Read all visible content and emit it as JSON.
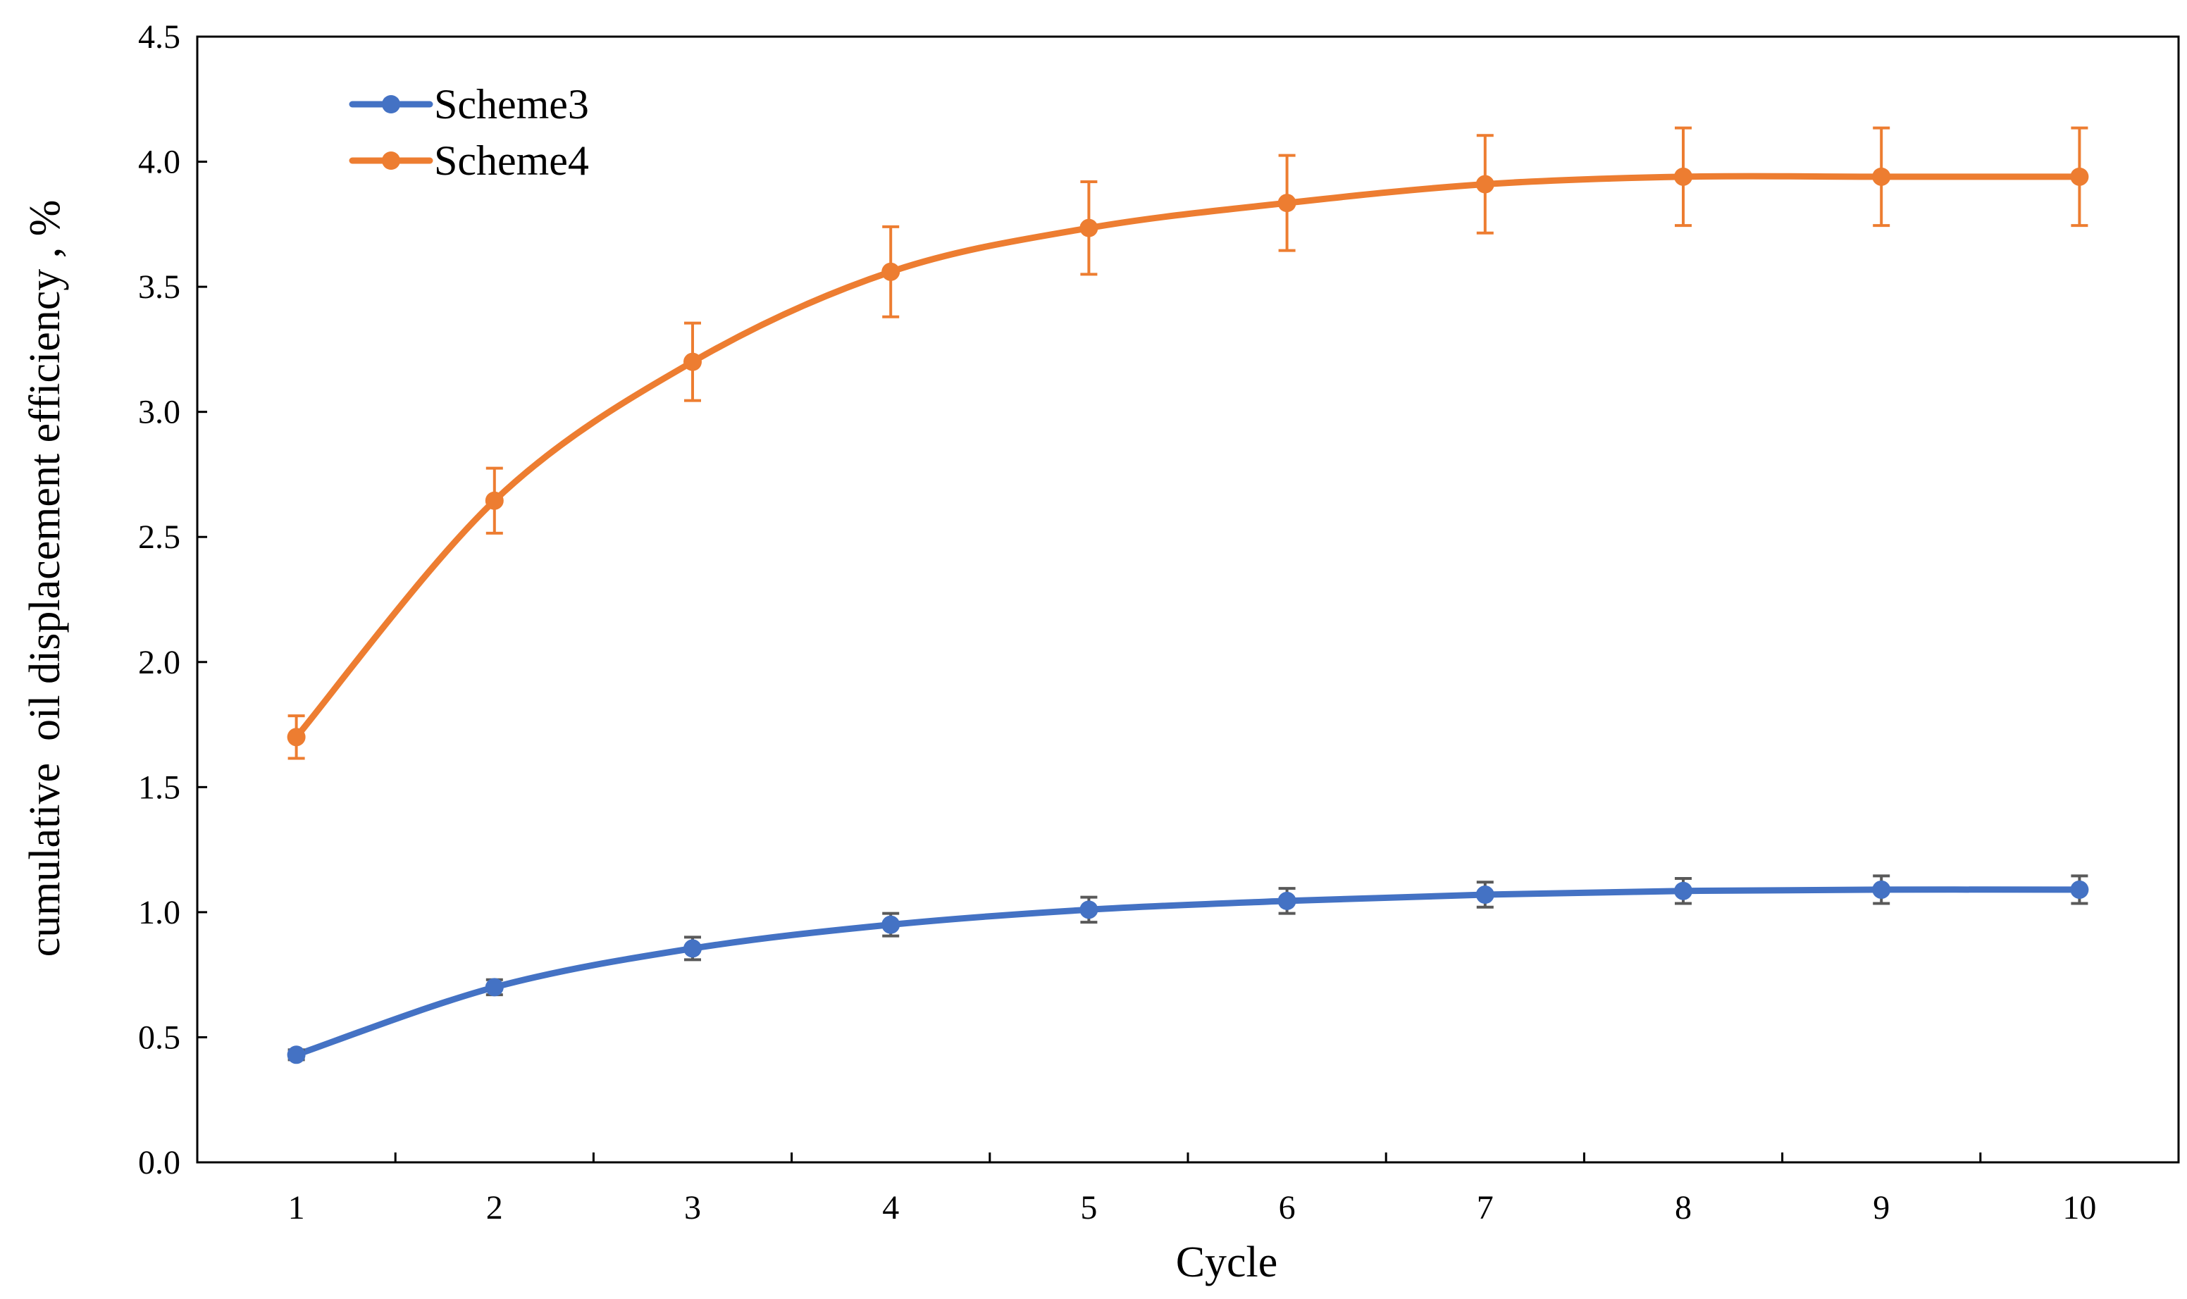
{
  "chart_data": {
    "type": "line",
    "title": "",
    "xlabel": "Cycle",
    "ylabel": "cumulative  oil displacement efficiency , %",
    "categories": [
      "1",
      "2",
      "3",
      "4",
      "5",
      "6",
      "7",
      "8",
      "9",
      "10"
    ],
    "x": [
      1,
      2,
      3,
      4,
      5,
      6,
      7,
      8,
      9,
      10
    ],
    "ylim": [
      0,
      4.5
    ],
    "yticks": [
      "0.0",
      "0.5",
      "1.0",
      "1.5",
      "2.0",
      "2.5",
      "3.0",
      "3.5",
      "4.0",
      "4.5"
    ],
    "grid": false,
    "legend": "top-left",
    "smooth": true,
    "error_bars": true,
    "series": [
      {
        "name": "Scheme3",
        "color": "#4472C4",
        "error_color": "#595959",
        "values": [
          0.43,
          0.7,
          0.855,
          0.95,
          1.01,
          1.045,
          1.07,
          1.085,
          1.09,
          1.09
        ],
        "errors": [
          0.02,
          0.03,
          0.045,
          0.045,
          0.05,
          0.05,
          0.05,
          0.05,
          0.055,
          0.055
        ]
      },
      {
        "name": "Scheme4",
        "color": "#ED7D31",
        "error_color": "#ED7D31",
        "values": [
          1.7,
          2.645,
          3.2,
          3.56,
          3.735,
          3.835,
          3.91,
          3.94,
          3.94,
          3.94
        ],
        "errors": [
          0.085,
          0.13,
          0.155,
          0.18,
          0.185,
          0.19,
          0.195,
          0.195,
          0.195,
          0.195
        ]
      }
    ]
  }
}
